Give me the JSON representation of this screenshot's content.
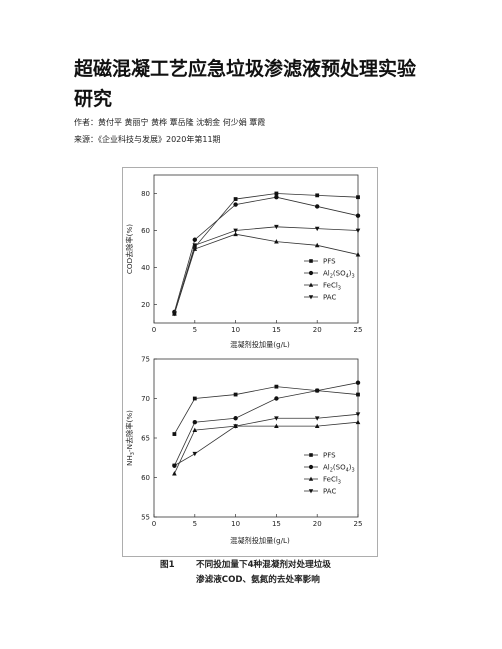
{
  "article": {
    "title": "超磁混凝工艺应急垃圾渗滤液预处理实验研究",
    "authors_label": "作者：",
    "authors": "黄付平 黄丽宁 黄桦 覃岳隆 沈朝金 何少娟 覃霞",
    "source_label": "来源：",
    "source": "《企业科技与发展》2020年第11期"
  },
  "figure": {
    "caption_number": "图1",
    "caption_line1": "不同投加量下4种混凝剂对处理垃圾",
    "caption_line2": "渗滤液COD、氨氮的去处率影响"
  },
  "chart_data": [
    {
      "type": "line",
      "ylabel": "COD去除率(%)",
      "xlabel": "混凝剂投加量(g/L)",
      "xlim": [
        0,
        25
      ],
      "ylim": [
        10,
        90
      ],
      "x_ticks": [
        0,
        5,
        10,
        15,
        20,
        25
      ],
      "y_ticks": [
        20,
        40,
        60,
        80
      ],
      "legend_position": "bottom-right",
      "x": [
        2.5,
        5,
        10,
        15,
        20,
        25
      ],
      "series": [
        {
          "name": "PFS",
          "marker": "square",
          "values": [
            15,
            51,
            77,
            80,
            79,
            78
          ]
        },
        {
          "name": "Al2(SO4)3",
          "marker": "circle",
          "values": [
            16,
            55,
            74,
            78,
            73,
            68
          ]
        },
        {
          "name": "FeCl3",
          "marker": "triangle-up",
          "values": [
            15,
            50,
            58,
            54,
            52,
            47
          ]
        },
        {
          "name": "PAC",
          "marker": "triangle-down",
          "values": [
            15,
            52,
            60,
            62,
            61,
            60
          ]
        }
      ]
    },
    {
      "type": "line",
      "ylabel": "NH3-N去除率(%)",
      "xlabel": "混凝剂投加量(g/L)",
      "xlim": [
        0,
        25
      ],
      "ylim": [
        55,
        75
      ],
      "x_ticks": [
        0,
        5,
        10,
        15,
        20,
        25
      ],
      "y_ticks": [
        55,
        60,
        65,
        70,
        75
      ],
      "legend_position": "bottom-right",
      "x": [
        2.5,
        5,
        10,
        15,
        20,
        25
      ],
      "series": [
        {
          "name": "PFS",
          "marker": "square",
          "values": [
            65.5,
            70,
            70.5,
            71.5,
            71,
            70.5
          ]
        },
        {
          "name": "Al2(SO4)3",
          "marker": "circle",
          "values": [
            61.5,
            67,
            67.5,
            70,
            71,
            72
          ]
        },
        {
          "name": "FeCl3",
          "marker": "triangle-up",
          "values": [
            60.5,
            66,
            66.5,
            66.5,
            66.5,
            67
          ]
        },
        {
          "name": "PAC",
          "marker": "triangle-down",
          "values": [
            61.5,
            63,
            66.5,
            67.5,
            67.5,
            68
          ]
        }
      ]
    }
  ]
}
